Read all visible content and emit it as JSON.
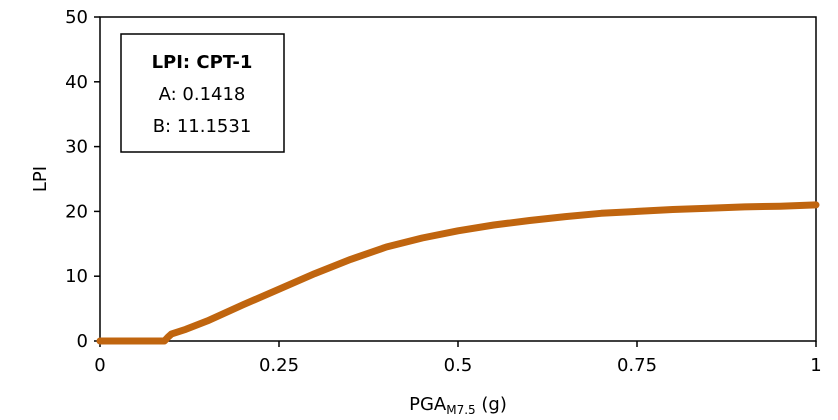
{
  "chart_data": {
    "type": "line",
    "xlabel_main": "PGA",
    "xlabel_sub": "M7.5",
    "xlabel_unit": " (g)",
    "ylabel": "LPI",
    "xlim": [
      0,
      1
    ],
    "ylim": [
      0,
      50
    ],
    "x_ticks": [
      0,
      0.25,
      0.5,
      0.75,
      1
    ],
    "x_tick_labels": [
      "0",
      "0.25",
      "0.5",
      "0.75",
      "1"
    ],
    "y_ticks": [
      0,
      10,
      20,
      30,
      40,
      50
    ],
    "y_tick_labels": [
      "0",
      "10",
      "20",
      "30",
      "40",
      "50"
    ],
    "grid": false,
    "annotation": {
      "title": "LPI: CPT-1",
      "line_a": "A: 0.1418",
      "line_b": "B: 11.1531"
    },
    "series": [
      {
        "color": "#c0650f",
        "x": [
          0,
          0.05,
          0.09,
          0.095,
          0.1,
          0.12,
          0.15,
          0.2,
          0.25,
          0.3,
          0.35,
          0.4,
          0.45,
          0.5,
          0.55,
          0.6,
          0.65,
          0.7,
          0.75,
          0.8,
          0.85,
          0.9,
          0.95,
          1.0
        ],
        "y": [
          0,
          0,
          0,
          0.6,
          1.1,
          1.8,
          3.1,
          5.6,
          8.0,
          10.4,
          12.6,
          14.5,
          15.9,
          17.0,
          17.9,
          18.6,
          19.2,
          19.7,
          20.0,
          20.3,
          20.5,
          20.7,
          20.8,
          21.0
        ]
      }
    ]
  }
}
